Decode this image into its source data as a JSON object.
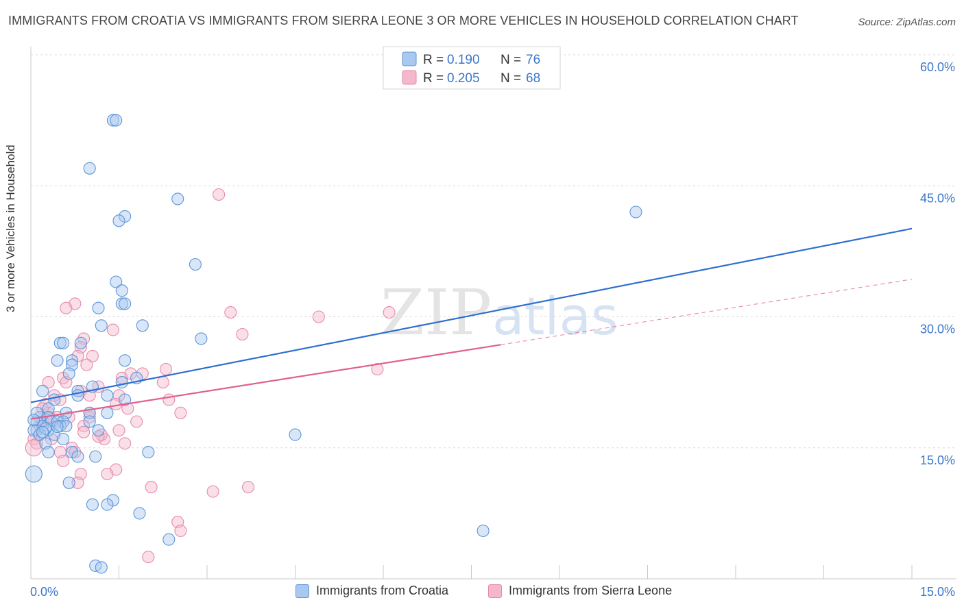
{
  "header": {
    "title": "IMMIGRANTS FROM CROATIA VS IMMIGRANTS FROM SIERRA LEONE 3 OR MORE VEHICLES IN HOUSEHOLD CORRELATION CHART",
    "source": "Source: ZipAtlas.com"
  },
  "watermark": {
    "zip": "ZIP",
    "atlas": "atlas"
  },
  "colors": {
    "croatia_fill": "#a8c8f0",
    "croatia_stroke": "#5b95d8",
    "croatia_line": "#2f6fd0",
    "sierra_fill": "#f5b8cb",
    "sierra_stroke": "#e58aa8",
    "sierra_line": "#e0608e",
    "value_text": "#3a76c8",
    "grid": "#d8d8d8"
  },
  "legend_top": {
    "rows": [
      {
        "r_label": "R = ",
        "r_value": "0.190",
        "n_label": "N = ",
        "n_value": "76"
      },
      {
        "r_label": "R = ",
        "r_value": "0.205",
        "n_label": "N = ",
        "n_value": "68"
      }
    ]
  },
  "legend_bottom": {
    "croatia": "Immigrants from Croatia",
    "sierra": "Immigrants from Sierra Leone"
  },
  "chart_data": {
    "type": "scatter",
    "title": "IMMIGRANTS FROM CROATIA VS IMMIGRANTS FROM SIERRA LEONE 3 OR MORE VEHICLES IN HOUSEHOLD CORRELATION CHART",
    "xlabel": "",
    "ylabel": "3 or more Vehicles in Household",
    "xlim": [
      0,
      15
    ],
    "ylim": [
      0,
      60
    ],
    "x_tick_labels": [
      "0.0%",
      "15.0%"
    ],
    "y_tick_values": [
      15,
      30,
      45,
      60
    ],
    "y_tick_labels": [
      "15.0%",
      "30.0%",
      "45.0%",
      "60.0%"
    ],
    "series": [
      {
        "name": "Immigrants from Croatia",
        "R": 0.19,
        "N": 76,
        "trend": {
          "x": [
            0.0,
            15.0
          ],
          "y": [
            20.2,
            40.1
          ]
        },
        "points": [
          [
            1.4,
            52.5
          ],
          [
            1.45,
            52.5
          ],
          [
            1.0,
            47.0
          ],
          [
            2.5,
            43.5
          ],
          [
            1.6,
            41.5
          ],
          [
            1.5,
            41.0
          ],
          [
            10.3,
            42.0
          ],
          [
            2.8,
            36.0
          ],
          [
            1.45,
            34.0
          ],
          [
            1.55,
            33.0
          ],
          [
            1.55,
            31.5
          ],
          [
            1.6,
            31.5
          ],
          [
            1.15,
            31.0
          ],
          [
            1.9,
            29.0
          ],
          [
            1.2,
            29.0
          ],
          [
            2.9,
            27.5
          ],
          [
            0.5,
            27.0
          ],
          [
            0.55,
            27.0
          ],
          [
            0.85,
            27.0
          ],
          [
            0.7,
            25.0
          ],
          [
            0.45,
            25.0
          ],
          [
            1.6,
            25.0
          ],
          [
            0.7,
            24.5
          ],
          [
            0.65,
            23.5
          ],
          [
            1.8,
            23.0
          ],
          [
            1.55,
            22.5
          ],
          [
            0.8,
            21.5
          ],
          [
            1.05,
            22.0
          ],
          [
            0.2,
            21.5
          ],
          [
            0.8,
            21.0
          ],
          [
            1.3,
            21.0
          ],
          [
            1.6,
            20.5
          ],
          [
            0.4,
            20.5
          ],
          [
            0.3,
            19.5
          ],
          [
            1.0,
            19.0
          ],
          [
            1.3,
            19.0
          ],
          [
            0.6,
            19.0
          ],
          [
            0.3,
            18.5
          ],
          [
            0.15,
            18.5
          ],
          [
            0.1,
            18.0
          ],
          [
            0.35,
            18.0
          ],
          [
            0.45,
            18.0
          ],
          [
            0.55,
            18.0
          ],
          [
            0.2,
            17.5
          ],
          [
            0.5,
            17.5
          ],
          [
            0.6,
            17.5
          ],
          [
            1.0,
            18.0
          ],
          [
            0.3,
            17.0
          ],
          [
            0.1,
            17.0
          ],
          [
            0.05,
            17.0
          ],
          [
            1.15,
            17.0
          ],
          [
            0.15,
            16.5
          ],
          [
            0.4,
            16.5
          ],
          [
            0.55,
            16.0
          ],
          [
            4.5,
            16.5
          ],
          [
            0.25,
            15.5
          ],
          [
            0.7,
            14.5
          ],
          [
            0.3,
            14.5
          ],
          [
            0.8,
            14.0
          ],
          [
            1.1,
            14.0
          ],
          [
            2.0,
            14.5
          ],
          [
            0.05,
            12.0
          ],
          [
            0.65,
            11.0
          ],
          [
            1.4,
            9.0
          ],
          [
            1.3,
            8.5
          ],
          [
            1.05,
            8.5
          ],
          [
            1.85,
            7.5
          ],
          [
            7.7,
            5.5
          ],
          [
            2.35,
            4.5
          ],
          [
            1.1,
            1.5
          ],
          [
            1.2,
            1.3
          ],
          [
            0.1,
            19.0
          ],
          [
            0.25,
            17.2
          ],
          [
            0.45,
            17.4
          ],
          [
            0.05,
            18.2
          ],
          [
            0.2,
            16.8
          ]
        ]
      },
      {
        "name": "Immigrants from Sierra Leone",
        "R": 0.205,
        "N": 68,
        "trend": {
          "x": [
            0.0,
            8.0
          ],
          "y": [
            18.3,
            26.8
          ]
        },
        "trend_dashed": {
          "x": [
            8.0,
            15.0
          ],
          "y": [
            26.8,
            34.3
          ]
        },
        "points": [
          [
            3.2,
            44.0
          ],
          [
            0.75,
            31.5
          ],
          [
            0.6,
            31.0
          ],
          [
            3.4,
            30.5
          ],
          [
            4.9,
            30.0
          ],
          [
            6.1,
            30.5
          ],
          [
            1.4,
            28.5
          ],
          [
            3.6,
            28.0
          ],
          [
            0.9,
            27.5
          ],
          [
            0.85,
            26.5
          ],
          [
            1.05,
            25.5
          ],
          [
            0.8,
            25.5
          ],
          [
            2.3,
            24.0
          ],
          [
            5.9,
            24.0
          ],
          [
            0.95,
            24.5
          ],
          [
            1.9,
            23.5
          ],
          [
            1.55,
            23.0
          ],
          [
            0.55,
            23.0
          ],
          [
            0.3,
            22.5
          ],
          [
            0.6,
            22.5
          ],
          [
            2.25,
            22.5
          ],
          [
            1.15,
            22.0
          ],
          [
            0.85,
            21.5
          ],
          [
            1.0,
            21.0
          ],
          [
            0.5,
            20.5
          ],
          [
            1.5,
            21.0
          ],
          [
            2.35,
            20.5
          ],
          [
            1.45,
            20.0
          ],
          [
            0.25,
            20.0
          ],
          [
            1.65,
            19.5
          ],
          [
            2.55,
            19.0
          ],
          [
            1.0,
            19.0
          ],
          [
            0.3,
            19.0
          ],
          [
            0.65,
            18.5
          ],
          [
            0.45,
            18.5
          ],
          [
            1.0,
            18.5
          ],
          [
            0.2,
            18.0
          ],
          [
            0.15,
            17.5
          ],
          [
            1.8,
            18.0
          ],
          [
            0.9,
            17.5
          ],
          [
            1.5,
            17.0
          ],
          [
            0.35,
            16.0
          ],
          [
            1.25,
            16.0
          ],
          [
            1.2,
            16.5
          ],
          [
            0.05,
            16.0
          ],
          [
            0.1,
            15.5
          ],
          [
            0.05,
            15.0
          ],
          [
            1.6,
            15.5
          ],
          [
            0.7,
            15.0
          ],
          [
            0.75,
            14.5
          ],
          [
            0.5,
            14.5
          ],
          [
            0.55,
            13.5
          ],
          [
            1.45,
            12.5
          ],
          [
            1.3,
            12.0
          ],
          [
            0.85,
            12.0
          ],
          [
            0.8,
            11.0
          ],
          [
            2.05,
            10.5
          ],
          [
            3.7,
            10.5
          ],
          [
            3.1,
            10.0
          ],
          [
            2.5,
            6.5
          ],
          [
            2.55,
            5.5
          ],
          [
            2.0,
            2.5
          ],
          [
            0.4,
            21.0
          ],
          [
            1.15,
            16.3
          ],
          [
            0.2,
            19.5
          ],
          [
            0.3,
            18.4
          ],
          [
            0.9,
            16.8
          ],
          [
            1.7,
            23.5
          ]
        ]
      }
    ]
  }
}
